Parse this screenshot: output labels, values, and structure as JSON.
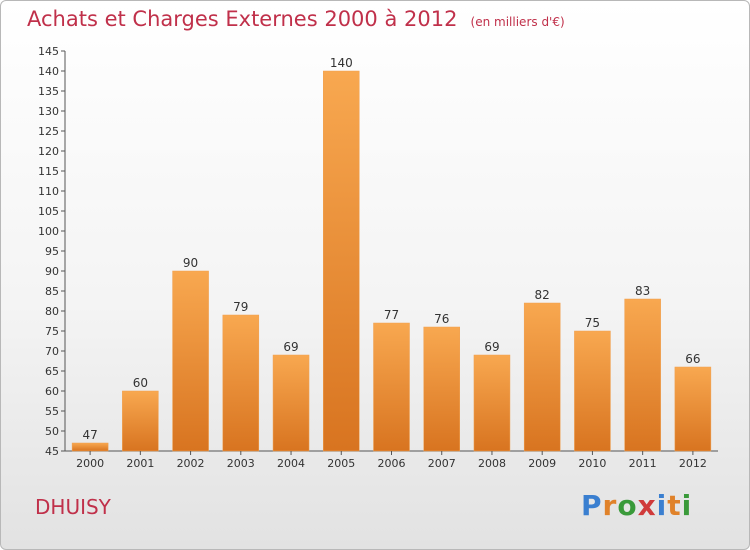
{
  "header": {
    "title": "Achats et Charges Externes 2000 à 2012",
    "subtitle": "(en milliers d'€)"
  },
  "commune": "DHUISY",
  "logo": {
    "text": "Proxiti",
    "colors": [
      "#3a7fd0",
      "#e0822a",
      "#3a9a3a",
      "#d03a3a",
      "#3a7fd0",
      "#e0822a",
      "#3a9a3a"
    ]
  },
  "chart_data": {
    "type": "bar",
    "categories": [
      "2000",
      "2001",
      "2002",
      "2003",
      "2004",
      "2005",
      "2006",
      "2007",
      "2008",
      "2009",
      "2010",
      "2011",
      "2012"
    ],
    "values": [
      47,
      60,
      90,
      79,
      69,
      140,
      77,
      76,
      69,
      82,
      75,
      83,
      66
    ],
    "data_labels": [
      "47",
      "60",
      "90",
      "79",
      "69",
      "140",
      "77",
      "76",
      "69",
      "82",
      "75",
      "83",
      "66"
    ],
    "ylim": [
      45,
      145
    ],
    "yticks": [
      45,
      50,
      55,
      60,
      65,
      70,
      75,
      80,
      85,
      90,
      95,
      100,
      105,
      110,
      115,
      120,
      125,
      130,
      135,
      140,
      145
    ],
    "grid": false,
    "bar_color": "#f0a050"
  }
}
